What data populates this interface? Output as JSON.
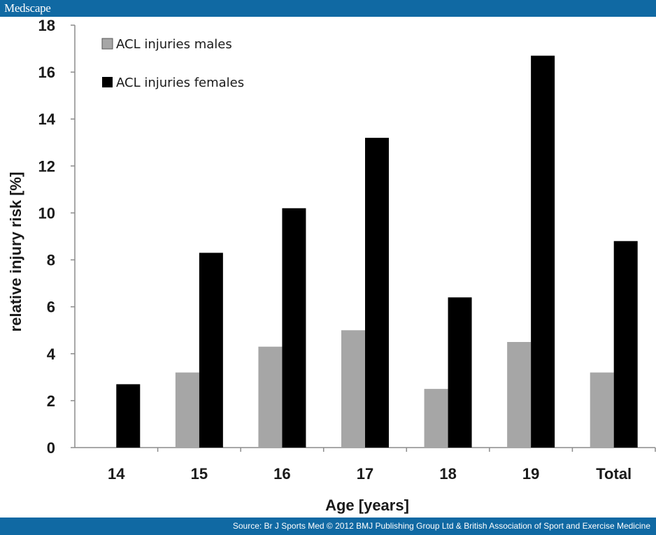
{
  "header": {
    "brand": "Medscape"
  },
  "footer": {
    "source": "Source: Br J Sports Med © 2012 BMJ Publishing Group Ltd & British Association of Sport and Exercise Medicine"
  },
  "colors": {
    "bar_bg": "#1069a3",
    "males": "#a6a6a6",
    "females": "#000000",
    "axis": "#8c8c8c"
  },
  "chart_data": {
    "type": "bar",
    "categories": [
      "14",
      "15",
      "16",
      "17",
      "18",
      "19",
      "Total"
    ],
    "series": [
      {
        "name": "ACL injuries males",
        "values": [
          0,
          3.2,
          4.3,
          5.0,
          2.5,
          4.5,
          3.2
        ]
      },
      {
        "name": "ACL injuries females",
        "values": [
          2.7,
          8.3,
          10.2,
          13.2,
          6.4,
          16.7,
          8.8
        ]
      }
    ],
    "title": "",
    "xlabel": "Age [years]",
    "ylabel": "relative injury risk [%]",
    "ylim": [
      0,
      18
    ],
    "yticks": [
      "0",
      "2",
      "4",
      "6",
      "8",
      "10",
      "12",
      "14",
      "16",
      "18"
    ],
    "grid": false,
    "legend": "top-left"
  }
}
